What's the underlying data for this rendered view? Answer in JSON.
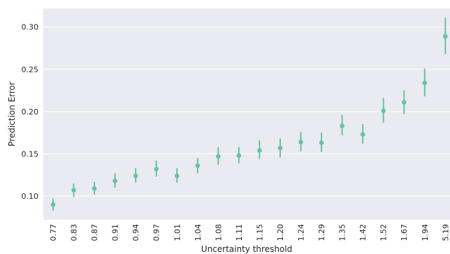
{
  "chart_data": {
    "type": "scatter",
    "title": "",
    "xlabel": "Uncertainty threshold",
    "ylabel": "Prediction Error",
    "categories": [
      "0.77",
      "0.83",
      "0.87",
      "0.91",
      "0.94",
      "0.97",
      "1.01",
      "1.04",
      "1.08",
      "1.11",
      "1.15",
      "1.20",
      "1.24",
      "1.29",
      "1.35",
      "1.42",
      "1.52",
      "1.67",
      "1.94",
      "5.19"
    ],
    "values": [
      0.09,
      0.107,
      0.109,
      0.118,
      0.124,
      0.132,
      0.124,
      0.136,
      0.147,
      0.148,
      0.154,
      0.157,
      0.164,
      0.163,
      0.183,
      0.173,
      0.201,
      0.211,
      0.234,
      0.289
    ],
    "error_low": [
      0.083,
      0.099,
      0.102,
      0.11,
      0.116,
      0.123,
      0.116,
      0.127,
      0.137,
      0.139,
      0.144,
      0.146,
      0.153,
      0.152,
      0.172,
      0.162,
      0.187,
      0.197,
      0.218,
      0.268
    ],
    "error_high": [
      0.097,
      0.115,
      0.117,
      0.127,
      0.133,
      0.142,
      0.133,
      0.145,
      0.158,
      0.158,
      0.166,
      0.168,
      0.176,
      0.175,
      0.196,
      0.185,
      0.216,
      0.225,
      0.251,
      0.311
    ],
    "yticks": [
      0.1,
      0.15,
      0.2,
      0.25,
      0.3
    ],
    "ytick_labels": [
      "0.10",
      "0.15",
      "0.20",
      "0.25",
      "0.30"
    ],
    "ylim": [
      0.072,
      0.322
    ],
    "grid": true,
    "colors": {
      "point": "#66c2a5",
      "plot_bg": "#eaeaf2",
      "grid": "#ffffff",
      "text": "#262626"
    }
  }
}
